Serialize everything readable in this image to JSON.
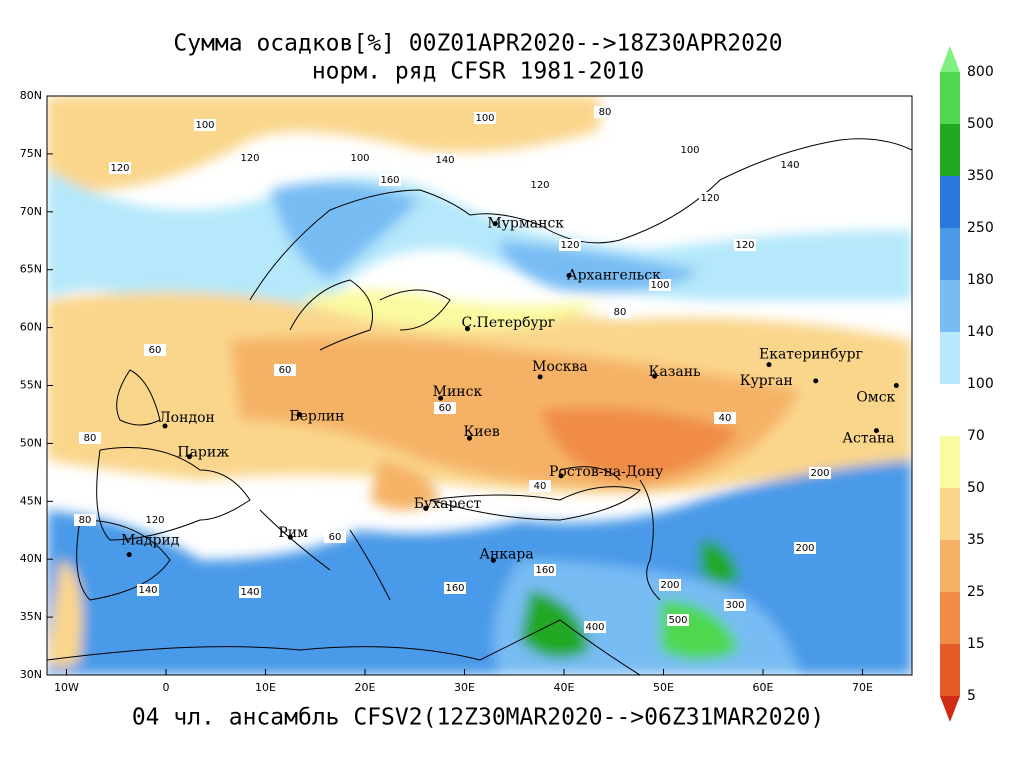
{
  "title": "Сумма осадков[%] 00Z01APR2020-->18Z30APR2020",
  "subtitle": "норм. ряд CFSR 1981-2010",
  "footer": "04 чл. ансамбль CFSV2(12Z30MAR2020-->06Z31MAR2020)",
  "map": {
    "lat_ticks": [
      "80N",
      "75N",
      "70N",
      "65N",
      "60N",
      "55N",
      "50N",
      "45N",
      "40N",
      "35N",
      "30N"
    ],
    "lon_ticks": [
      "10W",
      "0",
      "10E",
      "20E",
      "30E",
      "40E",
      "50E",
      "60E",
      "70E"
    ],
    "cities": [
      "Мурманск",
      "Архангельск",
      "С.Петербург",
      "Москва",
      "Казань",
      "Екатеринбург",
      "Курган",
      "Омск",
      "Астана",
      "Минск",
      "Берлин",
      "Лондон",
      "Париж",
      "Киев",
      "Ростов-на-Дону",
      "Бухарест",
      "Рим",
      "Мадрид",
      "Анкара"
    ],
    "contour_labels": [
      "100",
      "120",
      "120",
      "160",
      "100",
      "140",
      "120",
      "100",
      "80",
      "100",
      "120",
      "140",
      "120",
      "120",
      "100",
      "80",
      "60",
      "60",
      "40",
      "60",
      "80",
      "200",
      "200",
      "160",
      "140",
      "400",
      "500",
      "300",
      "200",
      "160",
      "140",
      "120",
      "80",
      "60",
      "40"
    ]
  },
  "colorbar": {
    "levels": [
      800,
      500,
      350,
      250,
      180,
      140,
      100,
      70,
      50,
      35,
      25,
      15,
      5
    ],
    "colors": [
      "#80f080",
      "#50d850",
      "#20a820",
      "#2a78dc",
      "#4a9ae8",
      "#78bcf4",
      "#b4e8fa",
      "#ffffff",
      "#fafaa0",
      "#fad68c",
      "#f5b266",
      "#f08c46",
      "#e65a28",
      "#d02a12"
    ]
  }
}
